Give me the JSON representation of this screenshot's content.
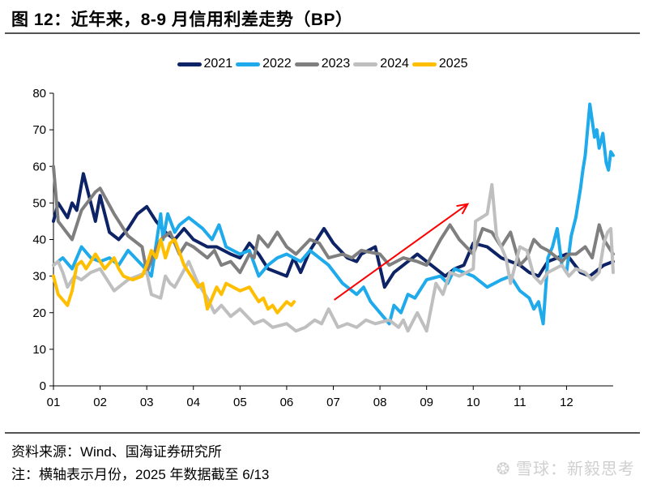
{
  "title": "图 12：近年来，8-9 月信用利差走势（BP）",
  "source": "资料来源：Wind、国海证券研究所",
  "note": "注：横轴表示月份，2025 年数据截至 6/13",
  "watermark": "雪球：新毅思考",
  "chart_data": {
    "type": "line",
    "title": "近年来，8-9 月信用利差走势（BP）",
    "xlabel": "",
    "ylabel": "",
    "xlim": [
      1,
      13
    ],
    "ylim": [
      0,
      80
    ],
    "x_ticks": [
      1,
      2,
      3,
      4,
      5,
      6,
      7,
      8,
      9,
      10,
      11,
      12
    ],
    "x_tick_labels": [
      "01",
      "02",
      "03",
      "04",
      "05",
      "06",
      "07",
      "08",
      "09",
      "10",
      "11",
      "12"
    ],
    "y_ticks": [
      0,
      10,
      20,
      30,
      40,
      50,
      60,
      70,
      80
    ],
    "y_tick_labels": [
      "0",
      "10",
      "20",
      "30",
      "40",
      "50",
      "60",
      "70",
      "80"
    ],
    "grid": false,
    "legend_position": "top",
    "annotation": {
      "type": "arrow",
      "color": "#ff0000",
      "from": [
        7.02,
        23.5
      ],
      "to": [
        9.88,
        49.7
      ]
    },
    "series": [
      {
        "name": "2021",
        "color": "#0d2366",
        "points": [
          [
            1,
            45
          ],
          [
            1.1,
            50
          ],
          [
            1.3,
            46
          ],
          [
            1.4,
            50
          ],
          [
            1.5,
            48
          ],
          [
            1.64,
            58
          ],
          [
            1.8,
            50
          ],
          [
            1.9,
            45
          ],
          [
            2.0,
            52
          ],
          [
            2.2,
            42
          ],
          [
            2.4,
            40
          ],
          [
            2.6,
            43
          ],
          [
            2.8,
            47
          ],
          [
            3.0,
            49
          ],
          [
            3.2,
            45
          ],
          [
            3.4,
            42
          ],
          [
            3.6,
            40
          ],
          [
            3.8,
            43
          ],
          [
            4.0,
            40
          ],
          [
            4.3,
            38
          ],
          [
            4.5,
            38
          ],
          [
            4.8,
            36
          ],
          [
            5.0,
            35
          ],
          [
            5.2,
            39
          ],
          [
            5.4,
            36
          ],
          [
            5.6,
            32
          ],
          [
            5.8,
            31
          ],
          [
            6.0,
            30
          ],
          [
            6.15,
            35
          ],
          [
            6.3,
            31
          ],
          [
            6.5,
            37
          ],
          [
            6.8,
            43
          ],
          [
            7.0,
            39
          ],
          [
            7.3,
            35
          ],
          [
            7.5,
            34
          ],
          [
            7.6,
            36
          ],
          [
            7.9,
            38
          ],
          [
            8.1,
            27
          ],
          [
            8.3,
            31
          ],
          [
            8.5,
            33
          ],
          [
            8.8,
            36
          ],
          [
            9.0,
            34
          ],
          [
            9.2,
            32
          ],
          [
            9.4,
            30
          ],
          [
            9.6,
            32
          ],
          [
            9.8,
            33
          ],
          [
            10.0,
            39
          ],
          [
            10.3,
            38
          ],
          [
            10.6,
            35
          ],
          [
            10.8,
            34
          ],
          [
            11.0,
            33
          ],
          [
            11.2,
            31
          ],
          [
            11.4,
            30
          ],
          [
            11.6,
            34
          ],
          [
            11.8,
            35
          ],
          [
            12.0,
            36
          ],
          [
            12.3,
            31
          ],
          [
            12.5,
            30
          ],
          [
            12.7,
            32
          ],
          [
            12.8,
            33
          ],
          [
            13.0,
            34
          ]
        ]
      },
      {
        "name": "2022",
        "color": "#1eaaeb",
        "points": [
          [
            1,
            33
          ],
          [
            1.2,
            35
          ],
          [
            1.4,
            32
          ],
          [
            1.6,
            38
          ],
          [
            1.8,
            35
          ],
          [
            2.0,
            34
          ],
          [
            2.2,
            35
          ],
          [
            2.4,
            33
          ],
          [
            2.6,
            37
          ],
          [
            2.9,
            33
          ],
          [
            3.1,
            30
          ],
          [
            3.3,
            47
          ],
          [
            3.35,
            40
          ],
          [
            3.45,
            47
          ],
          [
            3.6,
            42
          ],
          [
            3.7,
            44
          ],
          [
            3.9,
            46
          ],
          [
            4.2,
            43
          ],
          [
            4.4,
            40
          ],
          [
            4.55,
            44
          ],
          [
            4.7,
            38
          ],
          [
            5.0,
            36
          ],
          [
            5.2,
            37
          ],
          [
            5.4,
            30
          ],
          [
            5.6,
            33
          ],
          [
            5.8,
            35
          ],
          [
            6.0,
            36
          ],
          [
            6.3,
            34
          ],
          [
            6.5,
            37
          ],
          [
            6.7,
            35
          ],
          [
            6.9,
            33
          ],
          [
            7.2,
            28
          ],
          [
            7.5,
            25
          ],
          [
            7.65,
            27
          ],
          [
            7.8,
            23
          ],
          [
            8.0,
            20
          ],
          [
            8.2,
            17
          ],
          [
            8.3,
            22
          ],
          [
            8.45,
            20
          ],
          [
            8.6,
            25
          ],
          [
            8.75,
            24
          ],
          [
            9.0,
            29
          ],
          [
            9.3,
            30
          ],
          [
            9.45,
            28
          ],
          [
            9.6,
            32
          ],
          [
            9.8,
            31
          ],
          [
            10.0,
            30
          ],
          [
            10.3,
            27
          ],
          [
            10.6,
            29
          ],
          [
            10.8,
            30
          ],
          [
            11.0,
            26
          ],
          [
            11.2,
            24
          ],
          [
            11.3,
            21
          ],
          [
            11.4,
            23
          ],
          [
            11.5,
            17
          ],
          [
            11.6,
            35
          ],
          [
            11.7,
            38
          ],
          [
            11.8,
            43
          ],
          [
            11.9,
            33
          ],
          [
            12.0,
            31
          ],
          [
            12.1,
            41
          ],
          [
            12.2,
            46
          ],
          [
            12.3,
            54
          ],
          [
            12.35,
            59
          ],
          [
            12.4,
            63
          ],
          [
            12.5,
            77
          ],
          [
            12.6,
            68
          ],
          [
            12.65,
            70
          ],
          [
            12.7,
            65
          ],
          [
            12.78,
            69
          ],
          [
            12.85,
            61
          ],
          [
            12.9,
            59
          ],
          [
            12.95,
            64
          ],
          [
            13.0,
            63
          ]
        ]
      },
      {
        "name": "2023",
        "color": "#7f7f7f",
        "points": [
          [
            1.0,
            60
          ],
          [
            1.1,
            45
          ],
          [
            1.4,
            40
          ],
          [
            1.6,
            48
          ],
          [
            1.9,
            53
          ],
          [
            2.0,
            54
          ],
          [
            2.3,
            47
          ],
          [
            2.6,
            41
          ],
          [
            2.9,
            38
          ],
          [
            3.0,
            31
          ],
          [
            3.15,
            36
          ],
          [
            3.3,
            40
          ],
          [
            3.5,
            42
          ],
          [
            3.7,
            36
          ],
          [
            3.85,
            39
          ],
          [
            4.0,
            38
          ],
          [
            4.3,
            35
          ],
          [
            4.45,
            37
          ],
          [
            4.6,
            33
          ],
          [
            4.8,
            34
          ],
          [
            5.0,
            31
          ],
          [
            5.2,
            36
          ],
          [
            5.3,
            35
          ],
          [
            5.4,
            41
          ],
          [
            5.6,
            38
          ],
          [
            5.8,
            42
          ],
          [
            6.0,
            38
          ],
          [
            6.2,
            36
          ],
          [
            6.35,
            38
          ],
          [
            6.5,
            40
          ],
          [
            6.7,
            39
          ],
          [
            6.9,
            35
          ],
          [
            7.2,
            36
          ],
          [
            7.4,
            35
          ],
          [
            7.6,
            37
          ],
          [
            8.0,
            36
          ],
          [
            8.2,
            33
          ],
          [
            8.5,
            35
          ],
          [
            8.8,
            34
          ],
          [
            9.0,
            33
          ],
          [
            9.3,
            40
          ],
          [
            9.5,
            44
          ],
          [
            9.7,
            40
          ],
          [
            9.85,
            38
          ],
          [
            10.0,
            36
          ],
          [
            10.2,
            43
          ],
          [
            10.4,
            42
          ],
          [
            10.6,
            38
          ],
          [
            10.8,
            42
          ],
          [
            11.0,
            33
          ],
          [
            11.15,
            35
          ],
          [
            11.3,
            40
          ],
          [
            11.45,
            38
          ],
          [
            11.6,
            37
          ],
          [
            11.9,
            34
          ],
          [
            12.05,
            36
          ],
          [
            12.2,
            36
          ],
          [
            12.4,
            38
          ],
          [
            12.55,
            35
          ],
          [
            12.7,
            44
          ],
          [
            12.8,
            40
          ],
          [
            12.9,
            38
          ],
          [
            13.0,
            36
          ]
        ]
      },
      {
        "name": "2024",
        "color": "#bfbfbf",
        "points": [
          [
            1,
            33
          ],
          [
            1.1,
            34
          ],
          [
            1.2,
            31
          ],
          [
            1.3,
            27
          ],
          [
            1.45,
            30
          ],
          [
            1.6,
            29
          ],
          [
            1.8,
            31
          ],
          [
            2.0,
            32
          ],
          [
            2.3,
            26
          ],
          [
            2.6,
            29
          ],
          [
            3.0,
            31
          ],
          [
            3.1,
            25
          ],
          [
            3.3,
            24
          ],
          [
            3.4,
            30
          ],
          [
            3.5,
            28
          ],
          [
            3.6,
            27
          ],
          [
            3.9,
            34
          ],
          [
            4.1,
            28
          ],
          [
            4.3,
            24
          ],
          [
            4.45,
            20
          ],
          [
            4.6,
            22
          ],
          [
            4.8,
            19
          ],
          [
            5.0,
            21
          ],
          [
            5.3,
            17
          ],
          [
            5.5,
            18
          ],
          [
            5.7,
            16
          ],
          [
            6.0,
            17
          ],
          [
            6.2,
            15
          ],
          [
            6.4,
            16
          ],
          [
            6.6,
            18
          ],
          [
            6.75,
            17
          ],
          [
            6.9,
            21
          ],
          [
            7.1,
            16
          ],
          [
            7.3,
            17
          ],
          [
            7.5,
            16
          ],
          [
            7.7,
            18
          ],
          [
            7.9,
            17
          ],
          [
            8.2,
            18
          ],
          [
            8.4,
            16
          ],
          [
            8.5,
            18
          ],
          [
            8.6,
            15
          ],
          [
            8.8,
            20
          ],
          [
            9.0,
            15
          ],
          [
            9.2,
            28
          ],
          [
            9.35,
            25
          ],
          [
            9.5,
            31
          ],
          [
            9.7,
            30
          ],
          [
            10.0,
            32
          ],
          [
            10.05,
            45
          ],
          [
            10.3,
            47
          ],
          [
            10.4,
            55
          ],
          [
            10.5,
            41
          ],
          [
            10.7,
            35
          ],
          [
            10.8,
            28
          ],
          [
            11.0,
            38
          ],
          [
            11.15,
            37
          ],
          [
            11.3,
            30
          ],
          [
            11.45,
            28
          ],
          [
            11.6,
            31
          ],
          [
            11.9,
            33
          ],
          [
            12.05,
            30
          ],
          [
            12.2,
            32
          ],
          [
            12.4,
            31
          ],
          [
            12.55,
            29
          ],
          [
            12.7,
            31
          ],
          [
            12.8,
            39
          ],
          [
            12.88,
            42
          ],
          [
            12.95,
            43
          ],
          [
            13.0,
            31
          ]
        ]
      },
      {
        "name": "2025",
        "color": "#ffbf00",
        "points": [
          [
            1,
            30
          ],
          [
            1.1,
            25
          ],
          [
            1.3,
            22
          ],
          [
            1.4,
            26
          ],
          [
            1.5,
            33
          ],
          [
            1.6,
            34
          ],
          [
            1.7,
            32
          ],
          [
            1.9,
            36
          ],
          [
            2.0,
            34
          ],
          [
            2.1,
            32
          ],
          [
            2.3,
            35
          ],
          [
            2.4,
            32
          ],
          [
            2.5,
            30
          ],
          [
            2.7,
            29
          ],
          [
            2.9,
            30
          ],
          [
            3.0,
            33
          ],
          [
            3.1,
            37
          ],
          [
            3.2,
            35
          ],
          [
            3.3,
            40
          ],
          [
            3.4,
            35
          ],
          [
            3.5,
            39
          ],
          [
            3.6,
            40
          ],
          [
            3.8,
            33
          ],
          [
            4.0,
            29
          ],
          [
            4.1,
            27
          ],
          [
            4.2,
            28
          ],
          [
            4.3,
            21
          ],
          [
            4.4,
            24
          ],
          [
            4.5,
            27
          ],
          [
            4.6,
            25
          ],
          [
            4.7,
            28
          ],
          [
            4.85,
            27
          ],
          [
            5.0,
            26
          ],
          [
            5.2,
            27
          ],
          [
            5.4,
            23
          ],
          [
            5.5,
            24
          ],
          [
            5.6,
            21
          ],
          [
            5.7,
            22
          ],
          [
            5.8,
            20
          ],
          [
            6.0,
            23
          ],
          [
            6.1,
            22
          ],
          [
            6.16,
            23
          ]
        ]
      }
    ]
  }
}
